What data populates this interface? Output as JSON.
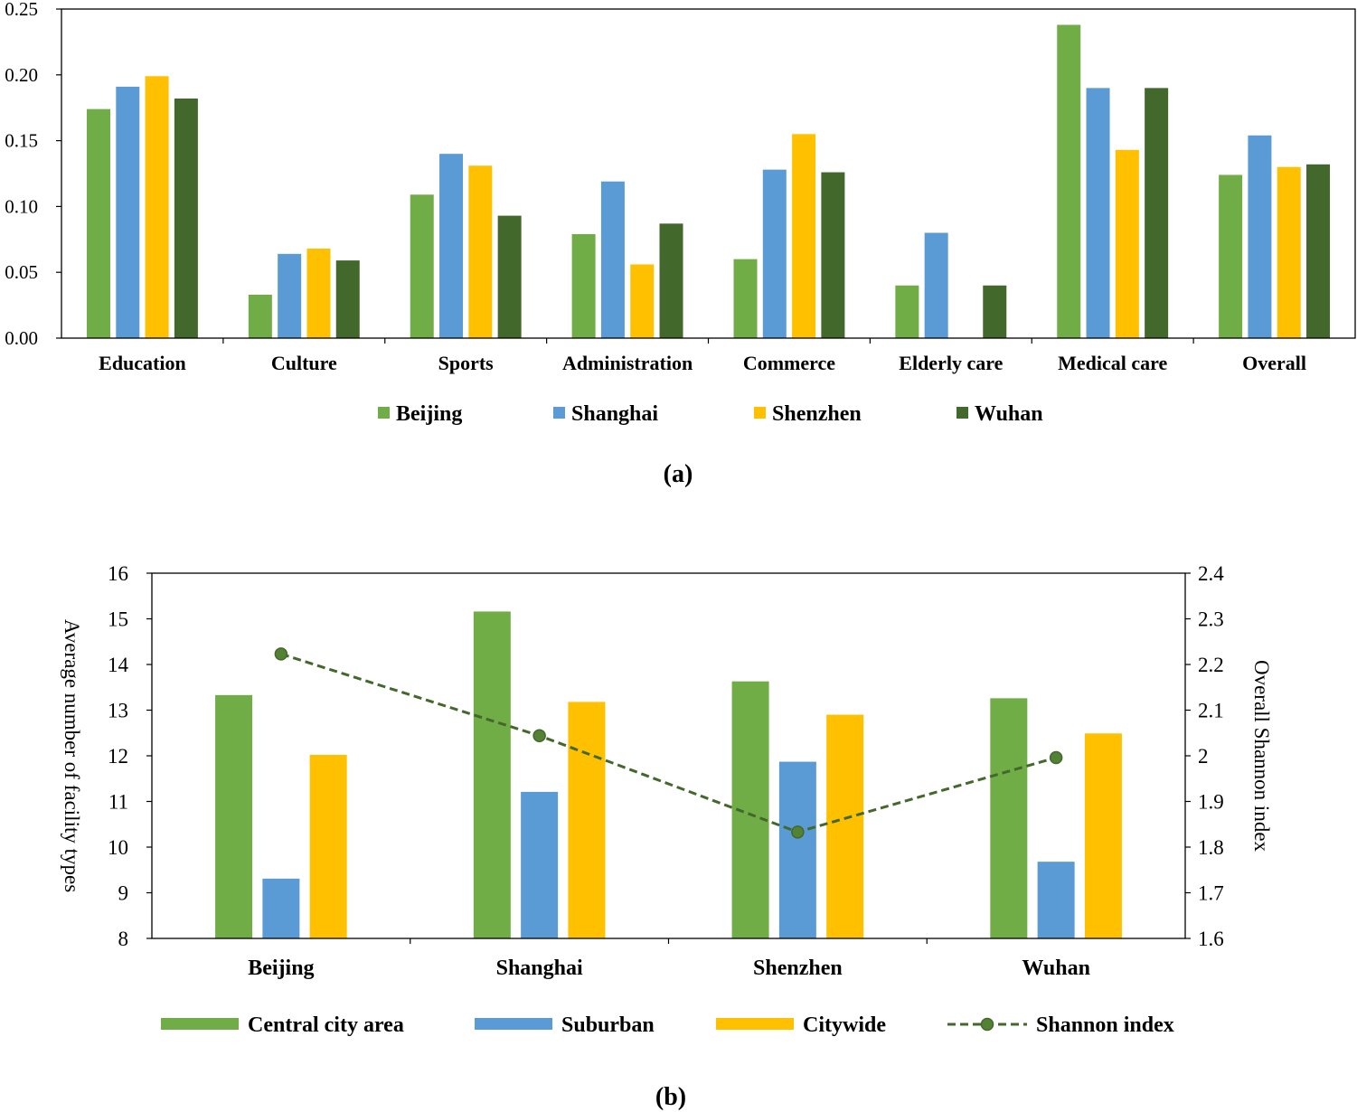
{
  "colors": {
    "beijing": "#70ad47",
    "shanghai": "#5b9bd5",
    "shenzhen": "#ffc000",
    "wuhan": "#43682b",
    "shannon": "#43682b"
  },
  "chart_data": [
    {
      "type": "bar",
      "panel_label": "(a)",
      "categories": [
        "Education",
        "Culture",
        "Sports",
        "Administration",
        "Commerce",
        "Elderly care",
        "Medical care",
        "Overall"
      ],
      "series": [
        {
          "name": "Beijing",
          "values": [
            0.174,
            0.033,
            0.109,
            0.079,
            0.06,
            0.04,
            0.238,
            0.124
          ]
        },
        {
          "name": "Shanghai",
          "values": [
            0.191,
            0.064,
            0.14,
            0.119,
            0.128,
            0.08,
            0.19,
            0.154
          ]
        },
        {
          "name": "Shenzhen",
          "values": [
            0.199,
            0.068,
            0.131,
            0.056,
            0.155,
            0.0,
            0.143,
            0.13
          ]
        },
        {
          "name": "Wuhan",
          "values": [
            0.182,
            0.059,
            0.093,
            0.087,
            0.126,
            0.04,
            0.19,
            0.132
          ]
        }
      ],
      "yticks": [
        "0.00",
        "0.05",
        "0.10",
        "0.15",
        "0.20",
        "0.25"
      ],
      "ylim": [
        0,
        0.25
      ],
      "legend_position": "bottom"
    },
    {
      "type": "bar+line",
      "panel_label": "(b)",
      "categories": [
        "Beijing",
        "Shanghai",
        "Shenzhen",
        "Wuhan"
      ],
      "series": [
        {
          "name": "Central city area",
          "axis": "left",
          "values": [
            13.33,
            15.16,
            13.63,
            13.26
          ]
        },
        {
          "name": "Suburban",
          "axis": "left",
          "values": [
            9.31,
            11.21,
            11.87,
            9.68
          ]
        },
        {
          "name": "Citywide",
          "axis": "left",
          "values": [
            12.02,
            13.18,
            12.9,
            12.49
          ]
        }
      ],
      "line_series": {
        "name": "Shannon index",
        "axis": "right",
        "values": [
          2.223,
          2.044,
          1.833,
          1.996
        ]
      },
      "ylabel": "Average number of facility types",
      "y2label": "Overall Shannon index",
      "yticks": [
        "8",
        "9",
        "10",
        "11",
        "12",
        "13",
        "14",
        "15",
        "16"
      ],
      "y2ticks": [
        "1.6",
        "1.7",
        "1.8",
        "1.9",
        "2",
        "2.1",
        "2.2",
        "2.3",
        "2.4"
      ],
      "ylim": [
        8,
        16
      ],
      "y2lim": [
        1.6,
        2.4
      ],
      "legend_position": "bottom"
    }
  ]
}
